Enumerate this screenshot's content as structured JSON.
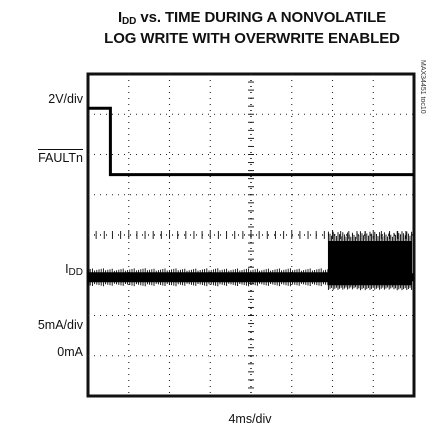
{
  "chart_data": {
    "type": "line",
    "title": {
      "prefix": "I",
      "subscript": "DD",
      "line1_rest": " vs. TIME DURING A NONVOLATILE",
      "line2": "LOG WRITE WITH OVERWRITE ENABLED"
    },
    "xlabel": "4ms/div",
    "side_text": "MAX34451 toc10",
    "grid": true,
    "x_divisions": 8,
    "y_divisions": 8,
    "x_unit_per_div_ms": 4,
    "xlim_ms": [
      0,
      32
    ],
    "channels": [
      {
        "name": "FAULTn",
        "scale_label": "2V/div",
        "overline": true,
        "points": [
          [
            0,
            3.3
          ],
          [
            2.2,
            3.3
          ],
          [
            2.2,
            0
          ],
          [
            32,
            0
          ]
        ]
      },
      {
        "name": "IDD",
        "scale_label": "5mA/div",
        "zero_label": "0mA",
        "baseline_mA": 5.5,
        "burst_start_ms": 23.6,
        "burst_end_ms": 31.8,
        "burst_peak_mA": 10.5
      }
    ]
  }
}
